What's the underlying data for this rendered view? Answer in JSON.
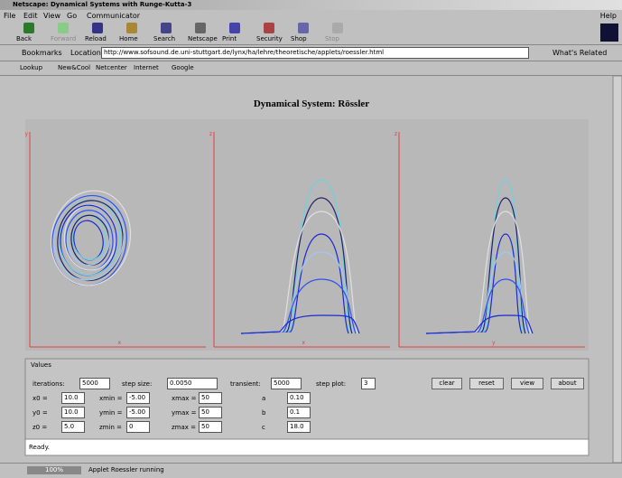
{
  "window": {
    "title": "Netscape: Dynamical Systems with Runge-Kutta-3"
  },
  "menu": {
    "items": [
      "File",
      "Edit",
      "View",
      "Go",
      "Communicator"
    ],
    "help": "Help"
  },
  "toolbar": {
    "buttons": [
      "Back",
      "Forward",
      "Reload",
      "Home",
      "Search",
      "Netscape",
      "Print",
      "Security",
      "Shop",
      "Stop"
    ]
  },
  "location": {
    "bookmarks": "Bookmarks",
    "label": "Location:",
    "url": "http://www.sofsound.de.uni-stuttgart.de/lynx/ha/lehre/theoretische/applets/roessler.html",
    "related": "What's Related"
  },
  "personal_toolbar": {
    "items": [
      "Lookup",
      "New&Cool",
      "Netcenter",
      "Internet",
      "Google"
    ]
  },
  "page": {
    "heading": "Dynamical System: Rössler",
    "plots": [
      {
        "x_label": "x",
        "y_label": "y"
      },
      {
        "x_label": "x",
        "y_label": "z"
      },
      {
        "x_label": "y",
        "y_label": "z"
      }
    ],
    "controls": {
      "title": "Values",
      "row1": [
        {
          "label": "iterations:",
          "value": "5000"
        },
        {
          "label": "step size:",
          "value": "0.0050"
        },
        {
          "label": "transient:",
          "value": "5000"
        },
        {
          "label": "step plot:",
          "value": "3"
        }
      ],
      "buttons": [
        "clear",
        "reset",
        "view",
        "about"
      ],
      "rows": [
        [
          {
            "label": "x0 =",
            "value": "10.0"
          },
          {
            "label": "xmin =",
            "value": "-5.00"
          },
          {
            "label": "xmax =",
            "value": "50"
          },
          {
            "label": "a",
            "value": "0.10"
          }
        ],
        [
          {
            "label": "y0 =",
            "value": "10.0"
          },
          {
            "label": "ymin =",
            "value": "-5.00"
          },
          {
            "label": "ymax =",
            "value": "50"
          },
          {
            "label": "b",
            "value": "0.1"
          }
        ],
        [
          {
            "label": "z0 =",
            "value": "5.0"
          },
          {
            "label": "zmin =",
            "value": "0"
          },
          {
            "label": "zmax =",
            "value": "50"
          },
          {
            "label": "c",
            "value": "18.0"
          }
        ]
      ]
    },
    "applet_status": "Ready."
  },
  "status": {
    "zoom": "100%",
    "message": "Applet Roessler running"
  }
}
